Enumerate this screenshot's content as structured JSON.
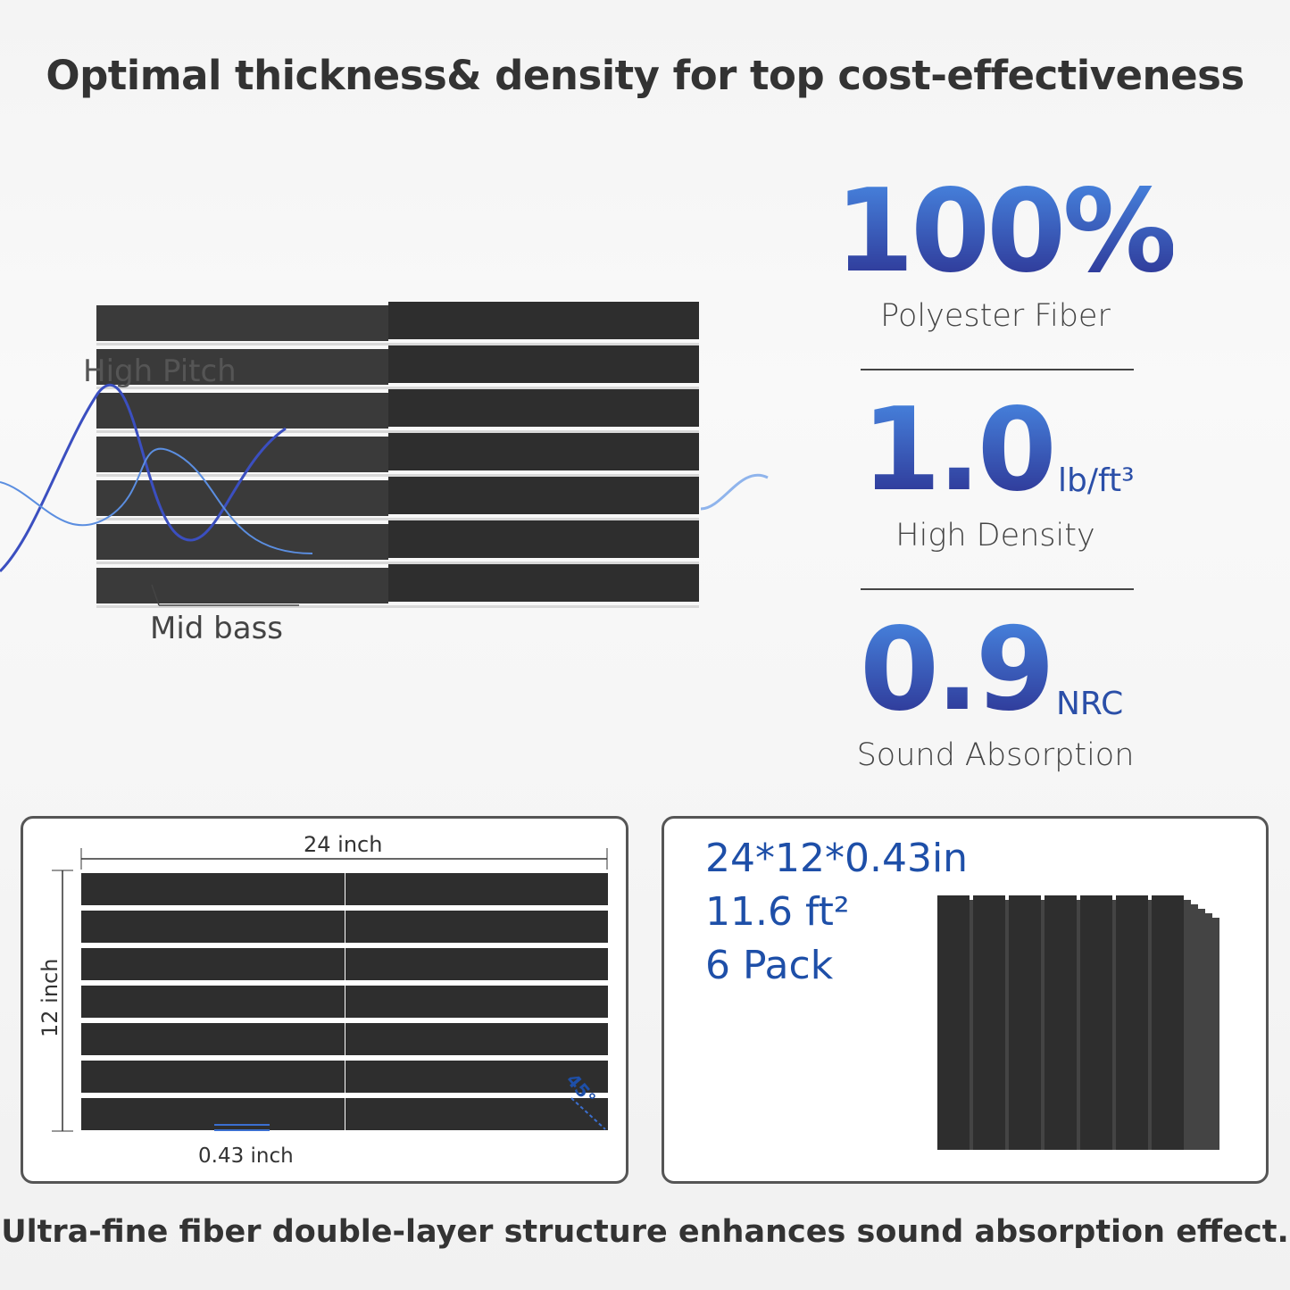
{
  "title": "Optimal thickness& density for top cost-effectiveness",
  "diagram": {
    "high_pitch_label": "High Pitch",
    "mid_bass_label": "Mid bass"
  },
  "stats": [
    {
      "value": "100%",
      "label": "Polyester Fiber"
    },
    {
      "value": "1.0",
      "unit": "lb/ft³",
      "label": "High Density"
    },
    {
      "value": "0.9",
      "unit": "NRC",
      "label": "Sound Absorption"
    }
  ],
  "dimensions": {
    "width_label": "24 inch",
    "height_label": "12 inch",
    "thickness_label": "0.43 inch",
    "angle_label": "45°"
  },
  "specs": {
    "size": "24*12*0.43in",
    "area": "11.6 ft²",
    "pack": "6 Pack"
  },
  "caption": "Ultra-fine fiber double-layer structure enhances sound absorption effect.",
  "colors": {
    "accent_blue": "#1e4fa8",
    "gradient_top": "#4a8ee8",
    "gradient_bottom": "#2a2a8a",
    "panel": "#2e2e2e"
  }
}
